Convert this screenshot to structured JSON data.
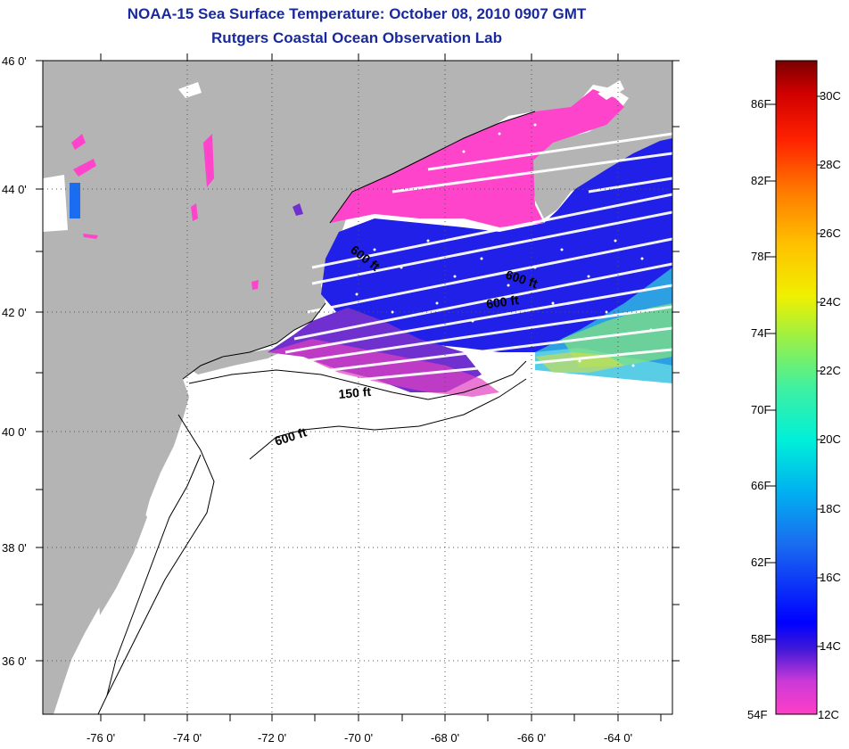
{
  "title": {
    "line1": "NOAA-15 Sea Surface Temperature:  October 08, 2010 0907 GMT",
    "line2": "Rutgers Coastal Ocean Observation Lab"
  },
  "axes": {
    "lat_labels": [
      "46 0'",
      "44 0'",
      "42 0'",
      "40 0'",
      "38 0'",
      "36 0'"
    ],
    "lon_labels": [
      "-76 0'",
      "-74 0'",
      "-72 0'",
      "-70 0'",
      "-68 0'",
      "-66 0'",
      "-64 0'"
    ]
  },
  "contour_labels": {
    "c600_a": "600 ft",
    "c600_b": "600 ft",
    "c600_c": "600 ft",
    "c150": "150 ft",
    "c600_d": "600 ft"
  },
  "colorbar": {
    "fahrenheit": [
      "86F",
      "82F",
      "78F",
      "74F",
      "70F",
      "66F",
      "62F",
      "58F",
      "54F"
    ],
    "celsius": [
      "30C",
      "28C",
      "26C",
      "24C",
      "22C",
      "20C",
      "18C",
      "16C",
      "14C",
      "12C"
    ],
    "range_c": [
      12,
      31
    ]
  },
  "colors": {
    "land": "#b4b4b4",
    "ocean_no_data": "#ffffff",
    "title": "#1a2a9a"
  }
}
